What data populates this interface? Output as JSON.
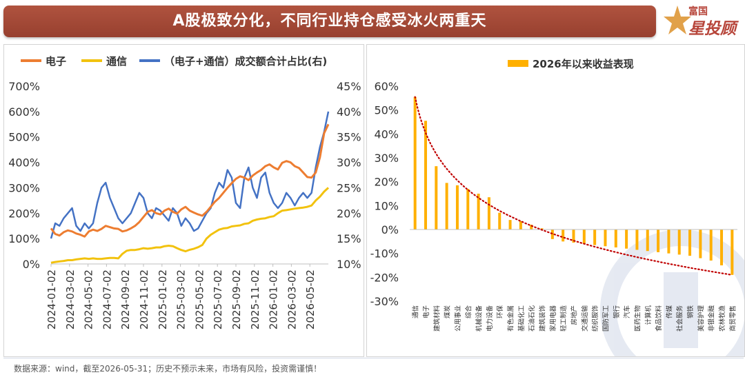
{
  "header": {
    "title": "A股极致分化，不同行业持仓感受冰火两重天"
  },
  "logo": {
    "line1": "富国",
    "line2": "星投顾"
  },
  "footer": {
    "source": "数据来源：wind，截至2026-05-31；历史不预示未来，市场有风险，投资需谨慎！"
  },
  "colors": {
    "electronics": "#ED7D31",
    "telecom": "#F2C20E",
    "share": "#4472C4",
    "bar": "#FFB000",
    "trend": "#C00000"
  },
  "chart_data": [
    {
      "type": "line",
      "title": "",
      "legend_position": "top",
      "y_left": {
        "ticks": [
          "0%",
          "100%",
          "200%",
          "300%",
          "400%",
          "500%",
          "600%",
          "700%"
        ],
        "range": [
          0,
          700
        ]
      },
      "y_right": {
        "ticks": [
          "10%",
          "15%",
          "20%",
          "25%",
          "30%",
          "35%",
          "40%",
          "45%"
        ],
        "range": [
          10,
          45
        ]
      },
      "x_ticks": [
        "2024-01-02",
        "2024-03-02",
        "2024-05-02",
        "2024-07-02",
        "2024-09-02",
        "2024-11-02",
        "2025-01-02",
        "2025-03-02",
        "2025-05-02",
        "2025-07-02",
        "2025-09-02",
        "2025-11-02",
        "2026-01-02",
        "2026-03-02",
        "2026-05-02"
      ],
      "series": [
        {
          "name": "电子",
          "axis": "left",
          "values": [
            140,
            118,
            112,
            125,
            132,
            128,
            120,
            115,
            108,
            128,
            135,
            130,
            138,
            150,
            145,
            140,
            138,
            128,
            132,
            140,
            150,
            165,
            185,
            205,
            212,
            200,
            195,
            210,
            218,
            205,
            198,
            215,
            225,
            210,
            202,
            195,
            190,
            205,
            225,
            245,
            260,
            280,
            300,
            318,
            335,
            345,
            340,
            330,
            348,
            360,
            370,
            385,
            392,
            380,
            372,
            398,
            405,
            400,
            385,
            378,
            360,
            342,
            340,
            360,
            420,
            515,
            550
          ]
        },
        {
          "name": "通信",
          "axis": "left",
          "values": [
            5,
            8,
            10,
            12,
            15,
            15,
            18,
            20,
            22,
            20,
            22,
            20,
            20,
            22,
            24,
            24,
            22,
            40,
            52,
            55,
            55,
            58,
            62,
            60,
            62,
            65,
            65,
            70,
            72,
            70,
            62,
            55,
            50,
            56,
            60,
            66,
            75,
            100,
            115,
            125,
            135,
            140,
            142,
            148,
            150,
            152,
            158,
            160,
            170,
            175,
            178,
            180,
            185,
            188,
            200,
            210,
            212,
            215,
            218,
            220,
            222,
            225,
            230,
            250,
            265,
            285,
            300
          ]
        },
        {
          "name": "（电子+通信）成交额合计占比(右)",
          "axis": "right",
          "values": [
            15,
            18,
            17.5,
            19,
            20,
            21,
            17.5,
            16.5,
            18,
            17,
            18,
            22,
            25,
            26,
            23,
            21,
            19,
            18,
            19,
            20,
            22,
            24,
            23,
            20,
            19,
            21,
            20.5,
            19.5,
            18.5,
            21,
            20,
            17.5,
            19,
            18,
            16.5,
            17,
            18.5,
            20,
            21,
            24,
            26,
            25,
            28.5,
            27,
            22,
            21,
            27,
            29,
            25,
            23,
            27,
            28,
            24,
            22,
            21,
            22,
            24,
            23,
            21.5,
            23,
            24,
            23,
            24,
            29,
            33,
            36,
            40
          ]
        }
      ]
    },
    {
      "type": "bar",
      "title": "",
      "legend": "2026年以来收益表现",
      "legend_position": "top",
      "y_ticks": [
        "60%",
        "50%",
        "40%",
        "30%",
        "20%",
        "10%",
        "0%",
        "-10%",
        "-20%",
        "-30%"
      ],
      "ylim": [
        -30,
        60
      ],
      "categories": [
        "通信",
        "电子",
        "建筑材料",
        "煤炭",
        "公用事业",
        "综合",
        "机械设备",
        "电力设备",
        "环保",
        "有色金属",
        "基础化工",
        "石油石化",
        "建筑装饰",
        "家用电器",
        "轻工制造",
        "房地产",
        "交通运输",
        "纺织服饰",
        "国防军工",
        "银行",
        "汽车",
        "医药生物",
        "计算机",
        "食品饮料",
        "传媒",
        "社会服务",
        "钢铁",
        "美容护理",
        "非银金融",
        "农林牧渔",
        "商贸零售"
      ],
      "values": [
        55.5,
        45.5,
        26.5,
        19.5,
        18.5,
        17,
        15,
        13.5,
        7,
        4,
        3.5,
        2,
        0.5,
        -4,
        -5,
        -5.5,
        -6,
        -6.5,
        -7,
        -7.5,
        -8,
        -8.5,
        -9,
        -9.5,
        -10,
        -10.5,
        -11,
        -12,
        -13,
        -15,
        -19
      ],
      "trendline": "logarithmic"
    }
  ]
}
